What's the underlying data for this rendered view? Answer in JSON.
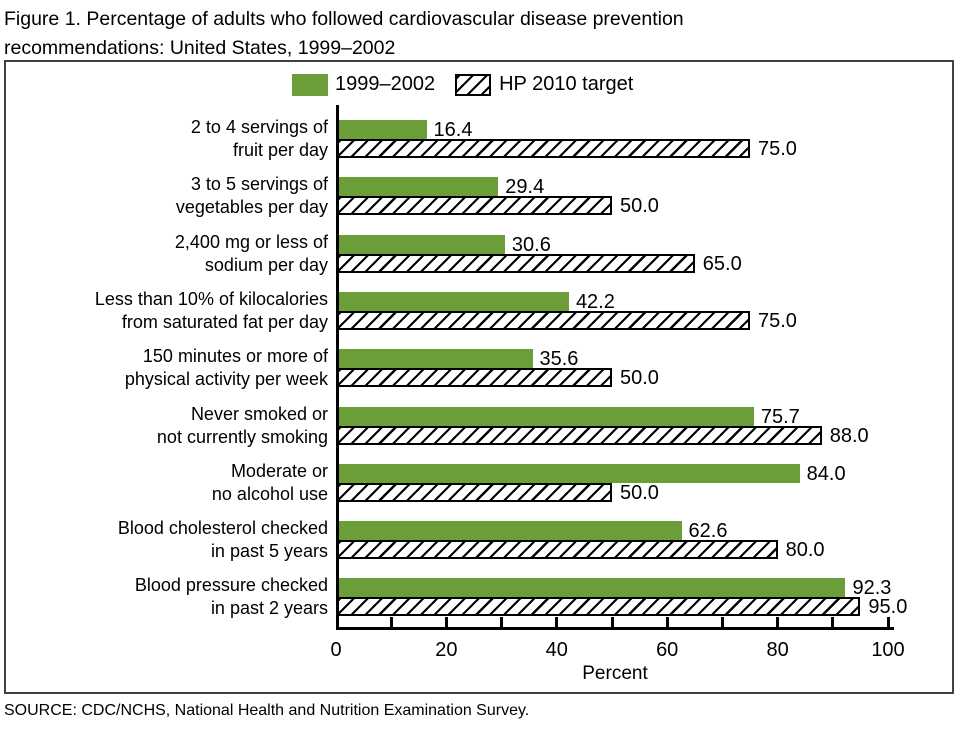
{
  "figure": {
    "title": "Figure 1. Percentage of adults who followed cardiovascular disease prevention\nrecommendations: United States, 1999–2002",
    "source": "SOURCE: CDC/NCHS, National Health and Nutrition Examination Survey."
  },
  "legend": {
    "series1": "1999–2002",
    "series2": "HP 2010 target"
  },
  "axis": {
    "label": "Percent",
    "min": 0,
    "max": 100,
    "major_ticks": [
      0,
      20,
      40,
      60,
      80,
      100
    ],
    "minor_tick_step": 10
  },
  "colors": {
    "series1_fill": "#6B9D38",
    "hatch_line": "#000000",
    "text": "#000000",
    "box_border": "#404040"
  },
  "chart_data": {
    "type": "bar",
    "orientation": "horizontal",
    "title": "Figure 1. Percentage of adults who followed cardiovascular disease prevention recommendations: United States, 1999–2002",
    "xlabel": "Percent",
    "xlim": [
      0,
      100
    ],
    "grid": false,
    "legend_position": "top-center",
    "value_labels": "end-of-bar, one decimal",
    "categories": [
      "2 to 4 servings of\nfruit per day",
      "3 to 5 servings of\nvegetables per day",
      "2,400 mg or less of\nsodium per day",
      "Less than 10% of kilocalories\nfrom saturated fat per day",
      "150 minutes or more of\nphysical activity per week",
      "Never smoked or\nnot currently smoking",
      "Moderate or\nno alcohol use",
      "Blood cholesterol checked\nin past 5 years",
      "Blood pressure checked\nin past 2 years"
    ],
    "series": [
      {
        "name": "1999–2002",
        "style": "solid-green",
        "values": [
          16.4,
          29.4,
          30.6,
          42.2,
          35.6,
          75.7,
          84.0,
          62.6,
          92.3
        ]
      },
      {
        "name": "HP 2010 target",
        "style": "black-diagonal-hatch",
        "values": [
          75.0,
          50.0,
          65.0,
          75.0,
          50.0,
          88.0,
          50.0,
          80.0,
          95.0
        ]
      }
    ],
    "source": "SOURCE: CDC/NCHS, National Health and Nutrition Examination Survey."
  }
}
